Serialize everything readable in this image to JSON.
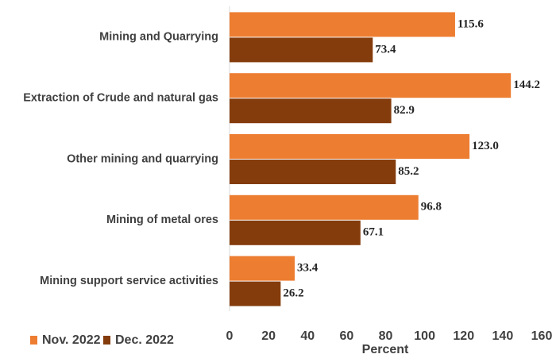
{
  "chart_data": {
    "type": "hbar",
    "categories": [
      "Mining and Quarrying",
      "Extraction of Crude and natural gas",
      "Other mining and quarrying",
      "Mining of metal ores",
      "Mining support service activities"
    ],
    "series": [
      {
        "name": "Nov. 2022",
        "color": "#ED7D31",
        "values": [
          115.6,
          144.2,
          123.0,
          96.8,
          33.4
        ],
        "value_labels": [
          "115.6",
          "144.2",
          "123.0",
          "96.8",
          "33.4"
        ]
      },
      {
        "name": "Dec. 2022",
        "color": "#843C0C",
        "values": [
          73.4,
          82.9,
          85.2,
          67.1,
          26.2
        ],
        "value_labels": [
          "73.4",
          "82.9",
          "85.2",
          "67.1",
          "26.2"
        ]
      }
    ],
    "xlabel": "Percent",
    "xlim": [
      0,
      160
    ],
    "xticks": [
      0,
      20,
      40,
      60,
      80,
      100,
      120,
      140,
      160
    ],
    "legend": "bottom-left",
    "grid": false
  }
}
